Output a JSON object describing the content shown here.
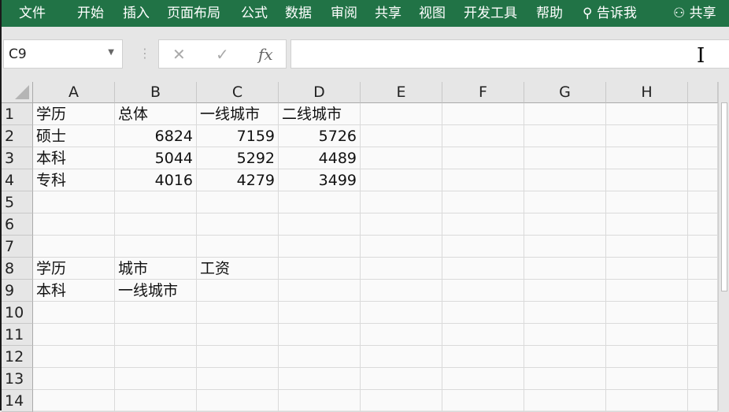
{
  "ribbon": {
    "tabs": [
      "文件",
      "开始",
      "插入",
      "页面布局",
      "公式",
      "数据",
      "审阅",
      "共享",
      "视图",
      "开发工具",
      "帮助"
    ],
    "tell_me": "告诉我",
    "share": "共享"
  },
  "formula_bar": {
    "name_box": "C9",
    "cancel": "✕",
    "enter": "✓",
    "fx": "fx",
    "value": ""
  },
  "sheet": {
    "columns": [
      "A",
      "B",
      "C",
      "D",
      "E",
      "F",
      "G",
      "H",
      ""
    ],
    "rows": [
      "1",
      "2",
      "3",
      "4",
      "5",
      "6",
      "7",
      "8",
      "9",
      "10",
      "11",
      "12",
      "13",
      "14"
    ],
    "cells": [
      [
        "学历",
        "总体",
        "一线城市",
        "二线城市"
      ],
      [
        "硕士",
        "6824",
        "7159",
        "5726"
      ],
      [
        "本科",
        "5044",
        "5292",
        "4489"
      ],
      [
        "专科",
        "4016",
        "4279",
        "3499"
      ],
      [],
      [],
      [],
      [
        "学历",
        "城市",
        "工资"
      ],
      [
        "本科",
        "一线城市",
        ""
      ],
      [],
      [],
      [],
      [],
      []
    ]
  },
  "colors": {
    "ribbon": "#217346"
  }
}
